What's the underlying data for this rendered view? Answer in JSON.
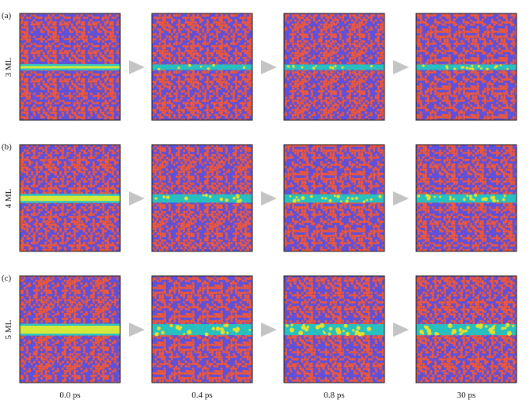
{
  "figure": {
    "rows": [
      {
        "panel": "(a)",
        "thickness": "3 ML"
      },
      {
        "panel": "(b)",
        "thickness": "4 ML"
      },
      {
        "panel": "(c)",
        "thickness": "5 ML"
      }
    ],
    "times": [
      "0.0 ps",
      "0.4 ps",
      "0.8 ps",
      "30 ps"
    ]
  }
}
